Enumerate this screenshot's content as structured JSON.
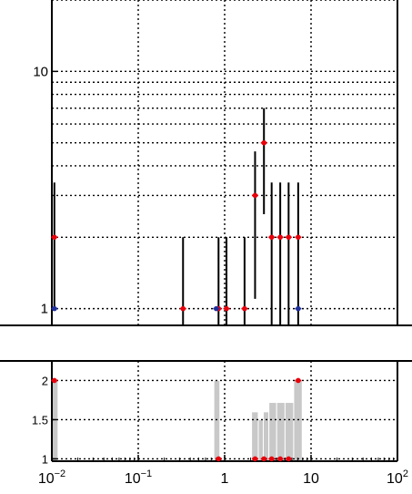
{
  "chart_data": [
    {
      "type": "scatter",
      "yscale": "log",
      "xscale": "log",
      "xlim": [
        0.01,
        100
      ],
      "ylim": [
        0.85,
        20
      ],
      "yticks": [
        {
          "value": 1,
          "label": "1"
        },
        {
          "value": 10,
          "label": "10"
        }
      ],
      "grid": true,
      "series": [
        {
          "color": "#e8000b",
          "points": [
            {
              "x": 0.0107,
              "y": 2,
              "err_low": 1,
              "err_high": 3.4
            },
            {
              "x": 0.33,
              "y": 1,
              "err_low": 0.7,
              "err_high": 2
            },
            {
              "x": 0.85,
              "y": 1,
              "err_low": 0.7,
              "err_high": 2
            },
            {
              "x": 1.05,
              "y": 1,
              "err_low": 0.7,
              "err_high": 2
            },
            {
              "x": 1.7,
              "y": 1,
              "err_low": 0.7,
              "err_high": 2
            },
            {
              "x": 2.25,
              "y": 3,
              "err_low": 1.1,
              "err_high": 4.6
            },
            {
              "x": 2.85,
              "y": 5,
              "err_low": 2.5,
              "err_high": 7
            },
            {
              "x": 3.5,
              "y": 2,
              "err_low": 0.7,
              "err_high": 3.4
            },
            {
              "x": 4.4,
              "y": 2,
              "err_low": 0.7,
              "err_high": 3.4
            },
            {
              "x": 5.5,
              "y": 2,
              "err_low": 0.7,
              "err_high": 3.4
            },
            {
              "x": 7.1,
              "y": 2,
              "err_low": 0.7,
              "err_high": 3.4
            }
          ]
        },
        {
          "color": "#1f2f9c",
          "points": [
            {
              "x": 0.0107,
              "y": 1
            },
            {
              "x": 0.8,
              "y": 1
            },
            {
              "x": 7.1,
              "y": 1
            }
          ]
        }
      ]
    },
    {
      "type": "bar",
      "xscale": "log",
      "xlim": [
        0.01,
        100
      ],
      "ylim": [
        0.97,
        2.25
      ],
      "xticks": [
        {
          "value": 0.01,
          "base": "10",
          "exp": "−2"
        },
        {
          "value": 0.1,
          "base": "10",
          "exp": "−1"
        },
        {
          "value": 1,
          "base": "1",
          "exp": ""
        },
        {
          "value": 10,
          "base": "10",
          "exp": ""
        },
        {
          "value": 100,
          "base": "10",
          "exp": "2"
        }
      ],
      "yticks": [
        {
          "value": 1,
          "label": "1"
        },
        {
          "value": 1.5,
          "label": "1.5"
        },
        {
          "value": 2,
          "label": "2"
        }
      ],
      "grid": true,
      "bars": [
        {
          "x0": 0.0101,
          "x1": 0.0118,
          "value": 2
        },
        {
          "x0": 0.75,
          "x1": 0.88,
          "value": 2
        },
        {
          "x0": 2.05,
          "x1": 2.45,
          "value": 1.6
        },
        {
          "x0": 2.45,
          "x1": 2.8,
          "value": 1.5
        },
        {
          "x0": 2.8,
          "x1": 3.25,
          "value": 1.6
        },
        {
          "x0": 3.25,
          "x1": 4.0,
          "value": 1.72
        },
        {
          "x0": 4.0,
          "x1": 5.0,
          "value": 1.72
        },
        {
          "x0": 5.0,
          "x1": 6.3,
          "value": 1.72
        },
        {
          "x0": 6.3,
          "x1": 7.9,
          "value": 2
        }
      ],
      "points": [
        {
          "x": 0.0107,
          "y": 2
        },
        {
          "x": 0.85,
          "y": 1
        },
        {
          "x": 2.25,
          "y": 1
        },
        {
          "x": 2.85,
          "y": 1
        },
        {
          "x": 3.5,
          "y": 1
        },
        {
          "x": 4.4,
          "y": 1
        },
        {
          "x": 5.5,
          "y": 1
        },
        {
          "x": 7.1,
          "y": 2
        }
      ],
      "bar_color": "#c8c8c8",
      "point_color": "#e8000b"
    }
  ]
}
